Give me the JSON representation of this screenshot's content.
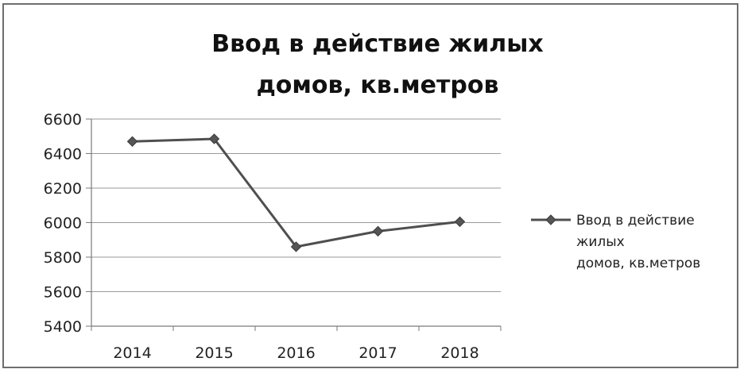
{
  "chart_data": {
    "type": "line",
    "title": "Ввод в действие жилых\nдомов, кв.метров",
    "categories": [
      "2014",
      "2015",
      "2016",
      "2017",
      "2018"
    ],
    "series": [
      {
        "name": "Ввод в действие жилых домов, кв.метров",
        "values": [
          6470,
          6485,
          5860,
          5950,
          6005
        ]
      }
    ],
    "ylim": [
      5400,
      6600
    ],
    "yticks": [
      6600,
      6400,
      6200,
      6000,
      5800,
      5600,
      5400
    ],
    "grid": true,
    "legend": "right",
    "legend_lines": [
      "Ввод в действие",
      "жилых",
      "домов, кв.метров"
    ],
    "colors": {
      "line": "#4f4f4f",
      "marker": "#555555",
      "grid": "#9a9a9a",
      "axis": "#7a7a7a"
    }
  }
}
